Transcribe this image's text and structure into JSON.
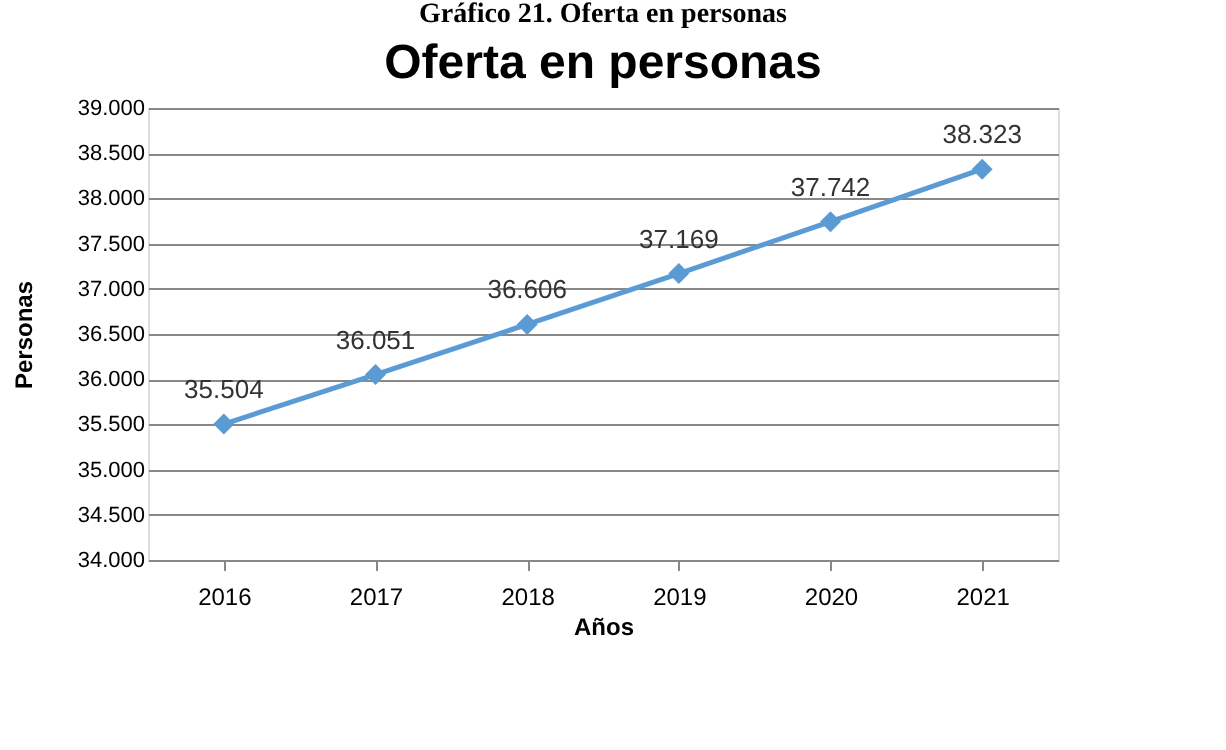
{
  "chart_data": {
    "type": "line",
    "title": "Oferta en personas",
    "xlabel": "Años",
    "ylabel": "Personas",
    "annotations": [
      "Gráfico 21. Oferta en personas"
    ],
    "categories": [
      "2016",
      "2017",
      "2018",
      "2019",
      "2020",
      "2021"
    ],
    "series": [
      {
        "color": "#5b9bd5",
        "values": [
          35504,
          36051,
          36606,
          37169,
          37742,
          38323
        ],
        "value_labels": [
          "35.504",
          "36.051",
          "36.606",
          "37.169",
          "37.742",
          "38.323"
        ]
      }
    ],
    "ylim": [
      34000,
      39000
    ],
    "yticks": [
      {
        "value": 34000,
        "label": "34.000"
      },
      {
        "value": 34500,
        "label": "34.500"
      },
      {
        "value": 35000,
        "label": "35.000"
      },
      {
        "value": 35500,
        "label": "35.500"
      },
      {
        "value": 36000,
        "label": "36.000"
      },
      {
        "value": 36500,
        "label": "36.500"
      },
      {
        "value": 37000,
        "label": "37.000"
      },
      {
        "value": 37500,
        "label": "37.500"
      },
      {
        "value": 38000,
        "label": "38.000"
      },
      {
        "value": 38500,
        "label": "38.500"
      },
      {
        "value": 39000,
        "label": "39.000"
      }
    ],
    "grid": "y",
    "marker": "diamond",
    "line_style": "solid"
  }
}
